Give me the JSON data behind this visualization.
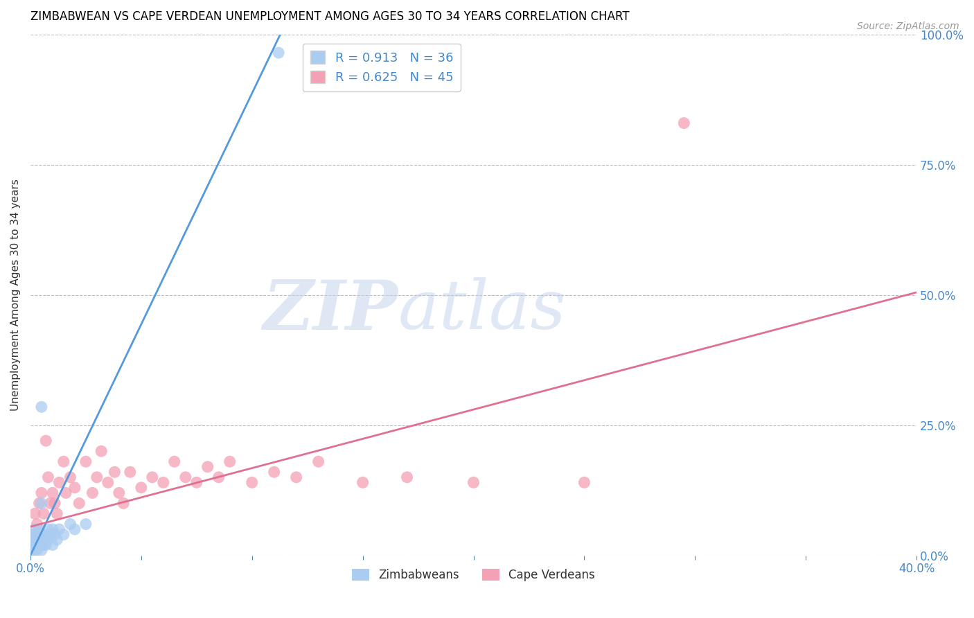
{
  "title": "ZIMBABWEAN VS CAPE VERDEAN UNEMPLOYMENT AMONG AGES 30 TO 34 YEARS CORRELATION CHART",
  "source": "Source: ZipAtlas.com",
  "ylabel": "Unemployment Among Ages 30 to 34 years",
  "xlim": [
    0.0,
    0.4
  ],
  "ylim": [
    0.0,
    1.0
  ],
  "xticks": [
    0.0,
    0.05,
    0.1,
    0.15,
    0.2,
    0.25,
    0.3,
    0.35,
    0.4
  ],
  "yticks_right": [
    0.0,
    0.25,
    0.5,
    0.75,
    1.0
  ],
  "yticklabels_right": [
    "0.0%",
    "25.0%",
    "50.0%",
    "75.0%",
    "100.0%"
  ],
  "zimbabwean_color": "#aaccf0",
  "cape_verdean_color": "#f4a0b5",
  "zimbabwean_line_color": "#5599dd",
  "cape_verdean_line_color": "#e07090",
  "watermark_zip_color": "#d0ddf5",
  "watermark_atlas_color": "#c8d8f0",
  "grid_color": "#bbbbbb",
  "title_color": "#000000",
  "axis_label_color": "#333333",
  "tick_color": "#4488cc",
  "background_color": "#ffffff",
  "zim_R": "0.913",
  "zim_N": "36",
  "cv_R": "0.625",
  "cv_N": "45",
  "zimbabwean_scatter_x": [
    0.001,
    0.001,
    0.001,
    0.002,
    0.002,
    0.002,
    0.002,
    0.003,
    0.003,
    0.003,
    0.004,
    0.004,
    0.004,
    0.005,
    0.005,
    0.005,
    0.006,
    0.006,
    0.007,
    0.007,
    0.008,
    0.008,
    0.009,
    0.01,
    0.01,
    0.011,
    0.012,
    0.013,
    0.015,
    0.018,
    0.02,
    0.025,
    0.005,
    0.112,
    0.005,
    0.002
  ],
  "zimbabwean_scatter_y": [
    0.01,
    0.02,
    0.03,
    0.01,
    0.02,
    0.04,
    0.05,
    0.01,
    0.03,
    0.04,
    0.02,
    0.03,
    0.05,
    0.01,
    0.02,
    0.04,
    0.02,
    0.03,
    0.02,
    0.04,
    0.03,
    0.05,
    0.04,
    0.02,
    0.05,
    0.04,
    0.03,
    0.05,
    0.04,
    0.06,
    0.05,
    0.06,
    0.285,
    0.965,
    0.1,
    0.02
  ],
  "cape_verdean_scatter_x": [
    0.001,
    0.002,
    0.003,
    0.004,
    0.005,
    0.006,
    0.007,
    0.008,
    0.009,
    0.01,
    0.011,
    0.012,
    0.013,
    0.015,
    0.016,
    0.018,
    0.02,
    0.022,
    0.025,
    0.028,
    0.03,
    0.032,
    0.035,
    0.038,
    0.04,
    0.042,
    0.045,
    0.05,
    0.055,
    0.06,
    0.065,
    0.07,
    0.075,
    0.08,
    0.085,
    0.09,
    0.1,
    0.11,
    0.12,
    0.13,
    0.15,
    0.17,
    0.2,
    0.25,
    0.295
  ],
  "cape_verdean_scatter_y": [
    0.04,
    0.08,
    0.06,
    0.1,
    0.12,
    0.08,
    0.22,
    0.15,
    0.1,
    0.12,
    0.1,
    0.08,
    0.14,
    0.18,
    0.12,
    0.15,
    0.13,
    0.1,
    0.18,
    0.12,
    0.15,
    0.2,
    0.14,
    0.16,
    0.12,
    0.1,
    0.16,
    0.13,
    0.15,
    0.14,
    0.18,
    0.15,
    0.14,
    0.17,
    0.15,
    0.18,
    0.14,
    0.16,
    0.15,
    0.18,
    0.14,
    0.15,
    0.14,
    0.14,
    0.83
  ],
  "zim_line_x": [
    0.0,
    0.115
  ],
  "zim_line_y": [
    0.0,
    1.02
  ],
  "cv_line_x": [
    0.0,
    0.4
  ],
  "cv_line_y": [
    0.055,
    0.505
  ]
}
